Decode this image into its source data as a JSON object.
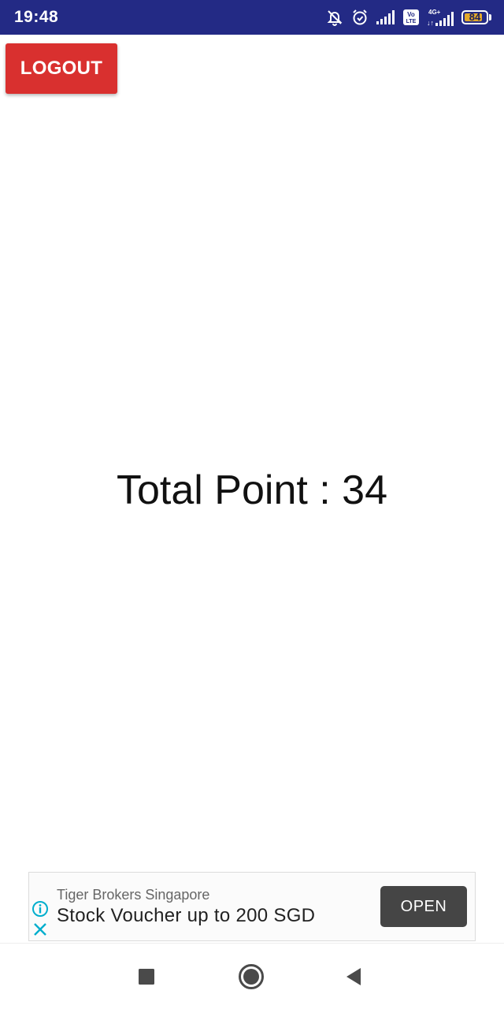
{
  "status_bar": {
    "time": "19:48",
    "battery_level": "84",
    "background_color": "#232a85",
    "icons": [
      "bell-off-icon",
      "alarm-icon",
      "signal-icon",
      "volte-icon",
      "signal-4g-icon",
      "battery-icon"
    ]
  },
  "toolbar": {
    "logout_label": "LOGOUT",
    "logout_color": "#d9302f"
  },
  "main": {
    "total_point_label": "Total Point : 34"
  },
  "ad": {
    "advertiser": "Tiger Brokers Singapore",
    "headline": "Stock Voucher up to 200 SGD",
    "open_label": "OPEN"
  },
  "nav_bar": {
    "buttons": [
      "recents-button",
      "home-button",
      "back-button"
    ]
  }
}
